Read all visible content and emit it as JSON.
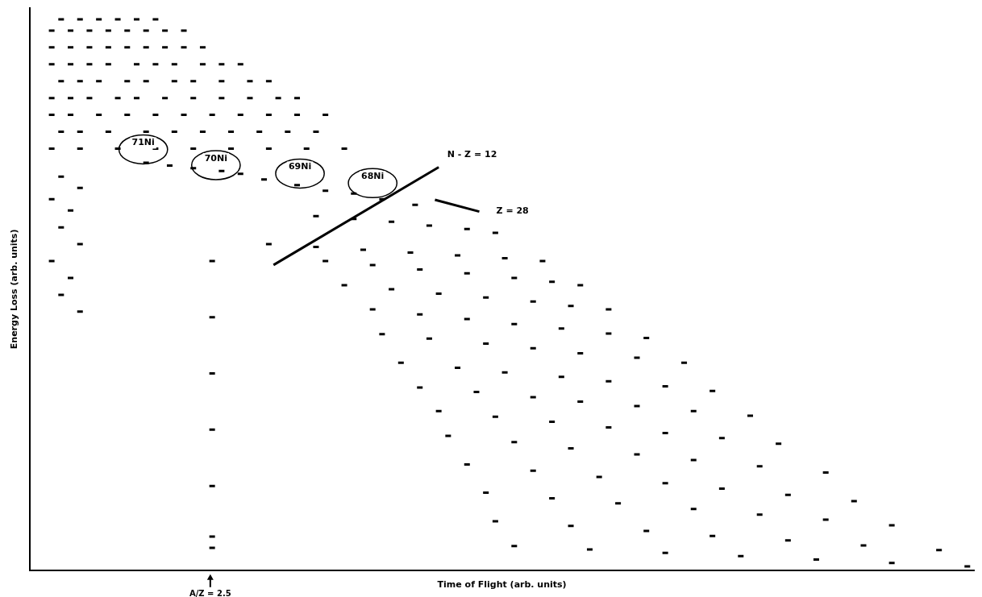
{
  "chart_data": {
    "type": "scatter",
    "x_label": "Time of Flight (arb. units)",
    "y_label": "Energy Loss (arb. units)",
    "xlim": [
      0,
      100
    ],
    "ylim": [
      0,
      100
    ],
    "tick_labels": false,
    "grid": false,
    "color": "#000000",
    "marker": "dash",
    "x": [
      3,
      5,
      7,
      9,
      11,
      13,
      2,
      4,
      6,
      8,
      10,
      12,
      14,
      16,
      2,
      4,
      6,
      8,
      10,
      12,
      14,
      16,
      18,
      2,
      4,
      6,
      8,
      11,
      13,
      15,
      18,
      20,
      22,
      3,
      5,
      7,
      10,
      12,
      15,
      17,
      20,
      23,
      25,
      2,
      4,
      6,
      9,
      11,
      14,
      17,
      20,
      23,
      26,
      28,
      2,
      4,
      7,
      10,
      13,
      16,
      19,
      22,
      25,
      28,
      31,
      3,
      5,
      8,
      12,
      15,
      18,
      21,
      24,
      27,
      30,
      2,
      5,
      9,
      13,
      17,
      21,
      25,
      29,
      33,
      3,
      5,
      2,
      4,
      3,
      5,
      2,
      4,
      3,
      5,
      12,
      14.5,
      17,
      20,
      22,
      24.5,
      28,
      31,
      34,
      37,
      40.5,
      19,
      19,
      19,
      19,
      19,
      19,
      19,
      30,
      34,
      38,
      42,
      46,
      49,
      25,
      30,
      35,
      40,
      45,
      50,
      54,
      31,
      36,
      41,
      46,
      51,
      55,
      58,
      33,
      38,
      43,
      48,
      53,
      57,
      61,
      36,
      41,
      46,
      51,
      56,
      61,
      65,
      37,
      42,
      48,
      53,
      58,
      64,
      69,
      39,
      45,
      50,
      56,
      61,
      67,
      72,
      41,
      47,
      53,
      58,
      64,
      70,
      76,
      43,
      49,
      55,
      61,
      67,
      73,
      79,
      44,
      51,
      57,
      64,
      70,
      77,
      84,
      46,
      53,
      60,
      67,
      73,
      80,
      87,
      48,
      55,
      62,
      70,
      77,
      84,
      91,
      49,
      57,
      65,
      72,
      80,
      88,
      96,
      51,
      59,
      67,
      75,
      83,
      91,
      99
    ],
    "values": [
      98,
      98,
      98,
      98,
      98,
      98,
      96,
      96,
      96,
      96,
      96,
      96,
      96,
      96,
      93,
      93,
      93,
      93,
      93,
      93,
      93,
      93,
      93,
      90,
      90,
      90,
      90,
      90,
      90,
      90,
      90,
      90,
      90,
      87,
      87,
      87,
      87,
      87,
      87,
      87,
      87,
      87,
      87,
      84,
      84,
      84,
      84,
      84,
      84,
      84,
      84,
      84,
      84,
      84,
      81,
      81,
      81,
      81,
      81,
      81,
      81,
      81,
      81,
      81,
      81,
      78,
      78,
      78,
      78,
      78,
      78,
      78,
      78,
      78,
      78,
      75,
      75,
      75,
      75,
      75,
      75,
      75,
      75,
      75,
      70,
      68,
      66,
      64,
      61,
      58,
      55,
      52,
      49,
      46,
      72.5,
      72,
      71.5,
      71,
      70.5,
      69.5,
      68.5,
      67.5,
      67,
      66,
      65,
      55,
      45,
      35,
      25,
      15,
      6,
      4,
      63,
      62.5,
      62,
      61.3,
      60.7,
      60,
      58,
      57.5,
      57,
      56.5,
      56,
      55.5,
      55,
      55,
      54.3,
      53.5,
      52.8,
      52,
      51.3,
      50.7,
      50.7,
      50,
      49.2,
      48.5,
      47.8,
      47,
      46.4,
      46.4,
      45.5,
      44.7,
      43.8,
      43,
      42.1,
      41.3,
      42,
      41.2,
      40.3,
      39.5,
      38.6,
      37.8,
      36.9,
      36.9,
      36,
      35.2,
      34.4,
      33.6,
      32.7,
      31.9,
      32.5,
      31.7,
      30.8,
      30,
      29.2,
      28.3,
      27.5,
      28.3,
      27.3,
      26.4,
      25.4,
      24.4,
      23.5,
      22.5,
      23.9,
      22.8,
      21.7,
      20.6,
      19.6,
      18.5,
      17.4,
      18.8,
      17.7,
      16.6,
      15.5,
      14.5,
      13.4,
      12.3,
      13.8,
      12.8,
      11.9,
      10.9,
      9.9,
      9,
      8,
      8.7,
      7.9,
      7,
      6.1,
      5.3,
      4.4,
      3.6,
      4.3,
      3.7,
      3.1,
      2.5,
      1.9,
      1.3,
      0.7
    ],
    "annotations": [
      {
        "text": "71Ni",
        "x": 12,
        "y": 76,
        "marker": "ellipse"
      },
      {
        "text": "70Ni",
        "x": 19.7,
        "y": 73.2,
        "marker": "ellipse"
      },
      {
        "text": "69Ni",
        "x": 28.6,
        "y": 71.7,
        "marker": "ellipse"
      },
      {
        "text": "68Ni",
        "x": 36.3,
        "y": 70,
        "marker": "ellipse"
      },
      {
        "text": "N - Z = 12",
        "x": 44.2,
        "y": 73.9,
        "line": {
          "x": [
            25.8,
            43.3
          ],
          "y": [
            54.3,
            71.7
          ]
        }
      },
      {
        "text": "Z = 28",
        "x": 49.4,
        "y": 63.8,
        "line": {
          "x": [
            42.9,
            47.6
          ],
          "y": [
            65.9,
            63.8
          ]
        }
      }
    ],
    "axis_annotations": [
      {
        "text": "A/Z = 2.5",
        "x": 19.1
      }
    ]
  }
}
